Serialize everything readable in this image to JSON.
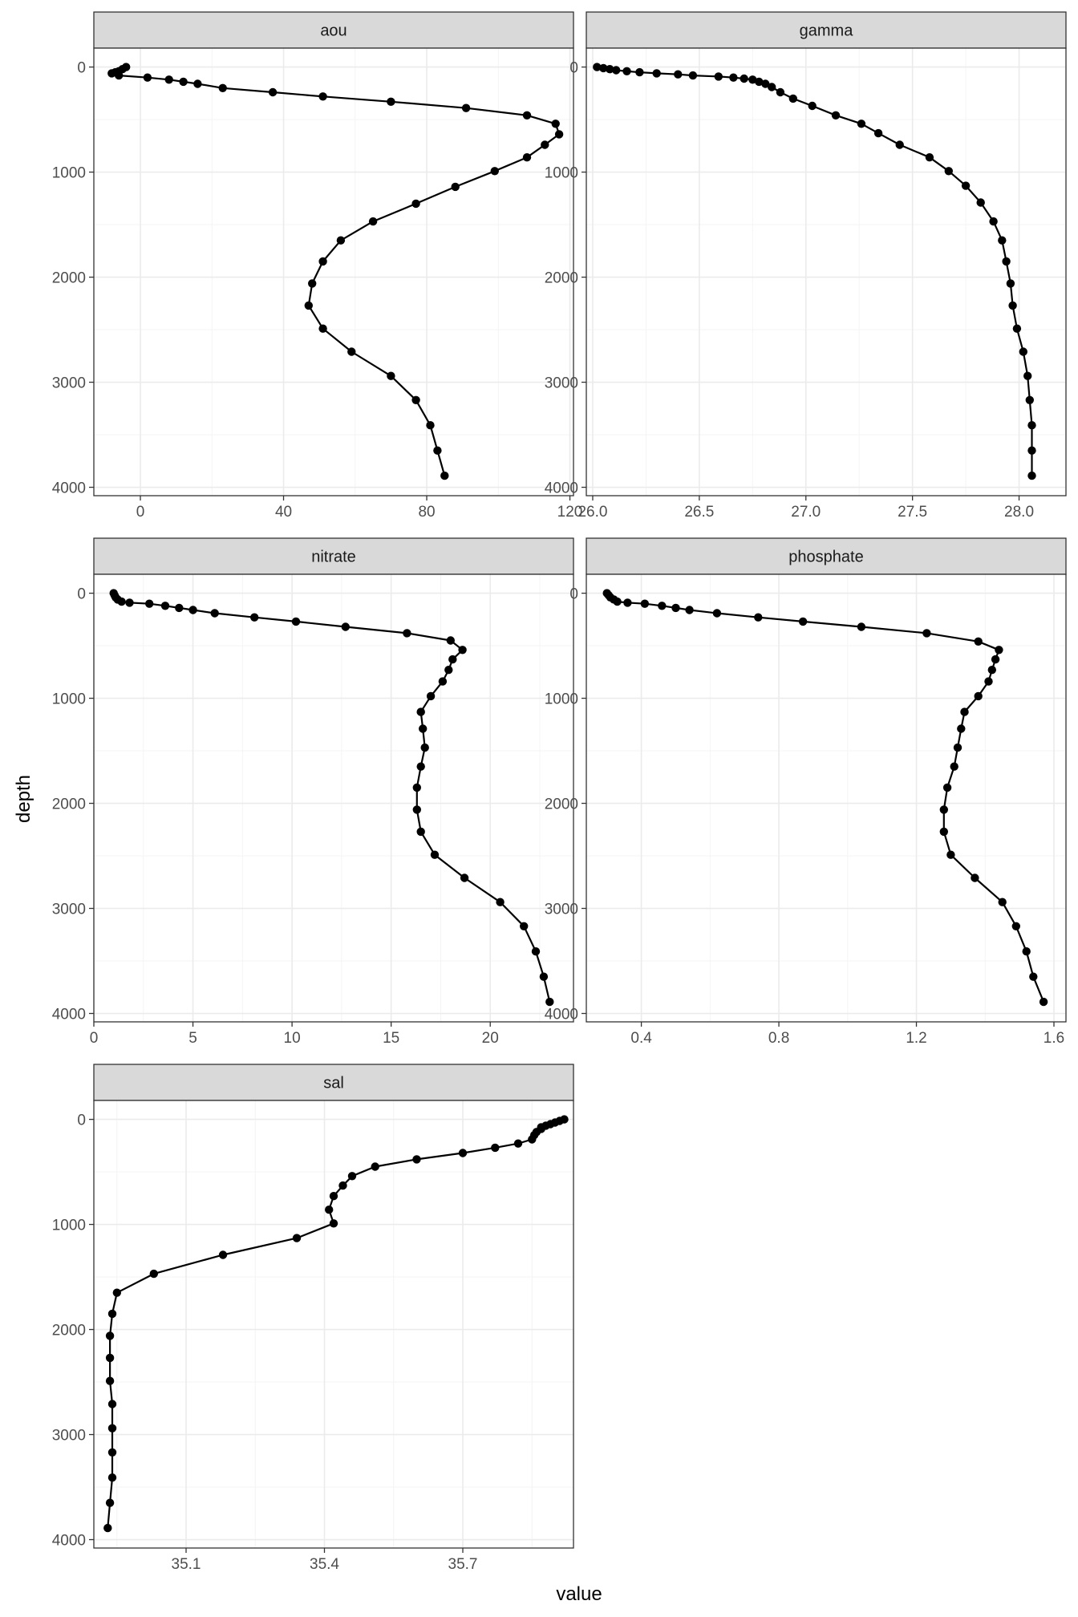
{
  "chart_data": {
    "type": "line",
    "xlabel": "value",
    "ylabel": "depth",
    "grid": true,
    "facets": [
      {
        "name": "aou",
        "x_ticks": [
          "0",
          "40",
          "80",
          "120"
        ],
        "x_tick_values": [
          0,
          40,
          80,
          120
        ],
        "xlim": [
          -13,
          121
        ],
        "minor_x": [
          20,
          60,
          100
        ],
        "y_ticks": [
          "0",
          "1000",
          "2000",
          "3000",
          "4000"
        ],
        "y_tick_values": [
          0,
          1000,
          2000,
          3000,
          4000
        ],
        "ylim": [
          4080,
          -180
        ],
        "points": [
          {
            "x": -4,
            "y": 0
          },
          {
            "x": -5,
            "y": 20
          },
          {
            "x": -6,
            "y": 40
          },
          {
            "x": -7,
            "y": 50
          },
          {
            "x": -8,
            "y": 60
          },
          {
            "x": -6,
            "y": 80
          },
          {
            "x": 2,
            "y": 100
          },
          {
            "x": 8,
            "y": 120
          },
          {
            "x": 12,
            "y": 140
          },
          {
            "x": 16,
            "y": 160
          },
          {
            "x": 23,
            "y": 200
          },
          {
            "x": 37,
            "y": 240
          },
          {
            "x": 51,
            "y": 280
          },
          {
            "x": 70,
            "y": 330
          },
          {
            "x": 91,
            "y": 390
          },
          {
            "x": 108,
            "y": 460
          },
          {
            "x": 116,
            "y": 540
          },
          {
            "x": 117,
            "y": 640
          },
          {
            "x": 113,
            "y": 740
          },
          {
            "x": 108,
            "y": 860
          },
          {
            "x": 99,
            "y": 990
          },
          {
            "x": 88,
            "y": 1140
          },
          {
            "x": 77,
            "y": 1300
          },
          {
            "x": 65,
            "y": 1470
          },
          {
            "x": 56,
            "y": 1650
          },
          {
            "x": 51,
            "y": 1850
          },
          {
            "x": 48,
            "y": 2060
          },
          {
            "x": 47,
            "y": 2270
          },
          {
            "x": 51,
            "y": 2490
          },
          {
            "x": 59,
            "y": 2710
          },
          {
            "x": 70,
            "y": 2940
          },
          {
            "x": 77,
            "y": 3170
          },
          {
            "x": 81,
            "y": 3410
          },
          {
            "x": 83,
            "y": 3650
          },
          {
            "x": 85,
            "y": 3890
          }
        ]
      },
      {
        "name": "gamma",
        "x_ticks": [
          "26.0",
          "26.5",
          "27.0",
          "27.5",
          "28.0"
        ],
        "x_tick_values": [
          26.0,
          26.5,
          27.0,
          27.5,
          28.0
        ],
        "xlim": [
          25.97,
          28.22
        ],
        "minor_x": [
          26.25,
          26.75,
          27.25,
          27.75
        ],
        "y_ticks": [
          "0",
          "1000",
          "2000",
          "3000",
          "4000"
        ],
        "y_tick_values": [
          0,
          1000,
          2000,
          3000,
          4000
        ],
        "ylim": [
          4080,
          -180
        ],
        "points": [
          {
            "x": 26.02,
            "y": 0
          },
          {
            "x": 26.05,
            "y": 10
          },
          {
            "x": 26.08,
            "y": 20
          },
          {
            "x": 26.11,
            "y": 30
          },
          {
            "x": 26.16,
            "y": 40
          },
          {
            "x": 26.22,
            "y": 50
          },
          {
            "x": 26.3,
            "y": 60
          },
          {
            "x": 26.4,
            "y": 70
          },
          {
            "x": 26.47,
            "y": 80
          },
          {
            "x": 26.59,
            "y": 90
          },
          {
            "x": 26.66,
            "y": 100
          },
          {
            "x": 26.71,
            "y": 110
          },
          {
            "x": 26.75,
            "y": 120
          },
          {
            "x": 26.78,
            "y": 140
          },
          {
            "x": 26.81,
            "y": 160
          },
          {
            "x": 26.84,
            "y": 190
          },
          {
            "x": 26.88,
            "y": 240
          },
          {
            "x": 26.94,
            "y": 300
          },
          {
            "x": 27.03,
            "y": 370
          },
          {
            "x": 27.14,
            "y": 460
          },
          {
            "x": 27.26,
            "y": 540
          },
          {
            "x": 27.34,
            "y": 630
          },
          {
            "x": 27.44,
            "y": 740
          },
          {
            "x": 27.58,
            "y": 860
          },
          {
            "x": 27.67,
            "y": 990
          },
          {
            "x": 27.75,
            "y": 1130
          },
          {
            "x": 27.82,
            "y": 1290
          },
          {
            "x": 27.88,
            "y": 1470
          },
          {
            "x": 27.92,
            "y": 1650
          },
          {
            "x": 27.94,
            "y": 1850
          },
          {
            "x": 27.96,
            "y": 2060
          },
          {
            "x": 27.97,
            "y": 2270
          },
          {
            "x": 27.99,
            "y": 2490
          },
          {
            "x": 28.02,
            "y": 2710
          },
          {
            "x": 28.04,
            "y": 2940
          },
          {
            "x": 28.05,
            "y": 3170
          },
          {
            "x": 28.06,
            "y": 3410
          },
          {
            "x": 28.06,
            "y": 3650
          },
          {
            "x": 28.06,
            "y": 3890
          }
        ]
      },
      {
        "name": "nitrate",
        "x_ticks": [
          "0",
          "5",
          "10",
          "15",
          "20"
        ],
        "x_tick_values": [
          0,
          5,
          10,
          15,
          20
        ],
        "xlim": [
          0,
          24.2
        ],
        "minor_x": [
          2.5,
          7.5,
          12.5,
          17.5,
          22.5
        ],
        "y_ticks": [
          "0",
          "1000",
          "2000",
          "3000",
          "4000"
        ],
        "y_tick_values": [
          0,
          1000,
          2000,
          3000,
          4000
        ],
        "ylim": [
          4080,
          -180
        ],
        "points": [
          {
            "x": 1.0,
            "y": 0
          },
          {
            "x": 1.05,
            "y": 20
          },
          {
            "x": 1.1,
            "y": 40
          },
          {
            "x": 1.2,
            "y": 60
          },
          {
            "x": 1.4,
            "y": 80
          },
          {
            "x": 1.8,
            "y": 90
          },
          {
            "x": 2.8,
            "y": 100
          },
          {
            "x": 3.6,
            "y": 120
          },
          {
            "x": 4.3,
            "y": 140
          },
          {
            "x": 5.0,
            "y": 160
          },
          {
            "x": 6.1,
            "y": 190
          },
          {
            "x": 8.1,
            "y": 230
          },
          {
            "x": 10.2,
            "y": 270
          },
          {
            "x": 12.7,
            "y": 320
          },
          {
            "x": 15.8,
            "y": 380
          },
          {
            "x": 18.0,
            "y": 450
          },
          {
            "x": 18.6,
            "y": 540
          },
          {
            "x": 18.1,
            "y": 630
          },
          {
            "x": 17.9,
            "y": 730
          },
          {
            "x": 17.6,
            "y": 840
          },
          {
            "x": 17.0,
            "y": 980
          },
          {
            "x": 16.5,
            "y": 1130
          },
          {
            "x": 16.6,
            "y": 1290
          },
          {
            "x": 16.7,
            "y": 1470
          },
          {
            "x": 16.5,
            "y": 1650
          },
          {
            "x": 16.3,
            "y": 1850
          },
          {
            "x": 16.3,
            "y": 2060
          },
          {
            "x": 16.5,
            "y": 2270
          },
          {
            "x": 17.2,
            "y": 2490
          },
          {
            "x": 18.7,
            "y": 2710
          },
          {
            "x": 20.5,
            "y": 2940
          },
          {
            "x": 21.7,
            "y": 3170
          },
          {
            "x": 22.3,
            "y": 3410
          },
          {
            "x": 22.7,
            "y": 3650
          },
          {
            "x": 23.0,
            "y": 3890
          }
        ]
      },
      {
        "name": "phosphate",
        "x_ticks": [
          "0.4",
          "0.8",
          "1.2",
          "1.6"
        ],
        "x_tick_values": [
          0.4,
          0.8,
          1.2,
          1.6
        ],
        "xlim": [
          0.24,
          1.635
        ],
        "minor_x": [
          0.6,
          1.0,
          1.4
        ],
        "y_ticks": [
          "0",
          "1000",
          "2000",
          "3000",
          "4000"
        ],
        "y_tick_values": [
          0,
          1000,
          2000,
          3000,
          4000
        ],
        "ylim": [
          4080,
          -180
        ],
        "points": [
          {
            "x": 0.3,
            "y": 0
          },
          {
            "x": 0.305,
            "y": 20
          },
          {
            "x": 0.31,
            "y": 40
          },
          {
            "x": 0.32,
            "y": 60
          },
          {
            "x": 0.33,
            "y": 80
          },
          {
            "x": 0.36,
            "y": 90
          },
          {
            "x": 0.41,
            "y": 100
          },
          {
            "x": 0.46,
            "y": 120
          },
          {
            "x": 0.5,
            "y": 140
          },
          {
            "x": 0.54,
            "y": 160
          },
          {
            "x": 0.62,
            "y": 190
          },
          {
            "x": 0.74,
            "y": 230
          },
          {
            "x": 0.87,
            "y": 270
          },
          {
            "x": 1.04,
            "y": 320
          },
          {
            "x": 1.23,
            "y": 380
          },
          {
            "x": 1.38,
            "y": 460
          },
          {
            "x": 1.44,
            "y": 540
          },
          {
            "x": 1.43,
            "y": 630
          },
          {
            "x": 1.42,
            "y": 730
          },
          {
            "x": 1.41,
            "y": 840
          },
          {
            "x": 1.38,
            "y": 980
          },
          {
            "x": 1.34,
            "y": 1130
          },
          {
            "x": 1.33,
            "y": 1290
          },
          {
            "x": 1.32,
            "y": 1470
          },
          {
            "x": 1.31,
            "y": 1650
          },
          {
            "x": 1.29,
            "y": 1850
          },
          {
            "x": 1.28,
            "y": 2060
          },
          {
            "x": 1.28,
            "y": 2270
          },
          {
            "x": 1.3,
            "y": 2490
          },
          {
            "x": 1.37,
            "y": 2710
          },
          {
            "x": 1.45,
            "y": 2940
          },
          {
            "x": 1.49,
            "y": 3170
          },
          {
            "x": 1.52,
            "y": 3410
          },
          {
            "x": 1.54,
            "y": 3650
          },
          {
            "x": 1.57,
            "y": 3890
          }
        ]
      },
      {
        "name": "sal",
        "x_ticks": [
          "35.1",
          "35.4",
          "35.7"
        ],
        "x_tick_values": [
          35.1,
          35.4,
          35.7
        ],
        "xlim": [
          34.9,
          35.94
        ],
        "minor_x": [
          34.95,
          35.25,
          35.55,
          35.85
        ],
        "y_ticks": [
          "0",
          "1000",
          "2000",
          "3000",
          "4000"
        ],
        "y_tick_values": [
          0,
          1000,
          2000,
          3000,
          4000
        ],
        "ylim": [
          4080,
          -180
        ],
        "points": [
          {
            "x": 35.92,
            "y": 0
          },
          {
            "x": 35.91,
            "y": 15
          },
          {
            "x": 35.9,
            "y": 30
          },
          {
            "x": 35.89,
            "y": 45
          },
          {
            "x": 35.88,
            "y": 60
          },
          {
            "x": 35.87,
            "y": 75
          },
          {
            "x": 35.87,
            "y": 90
          },
          {
            "x": 35.86,
            "y": 120
          },
          {
            "x": 35.855,
            "y": 150
          },
          {
            "x": 35.85,
            "y": 190
          },
          {
            "x": 35.82,
            "y": 230
          },
          {
            "x": 35.77,
            "y": 270
          },
          {
            "x": 35.7,
            "y": 320
          },
          {
            "x": 35.6,
            "y": 380
          },
          {
            "x": 35.51,
            "y": 450
          },
          {
            "x": 35.46,
            "y": 540
          },
          {
            "x": 35.44,
            "y": 630
          },
          {
            "x": 35.42,
            "y": 730
          },
          {
            "x": 35.41,
            "y": 860
          },
          {
            "x": 35.42,
            "y": 990
          },
          {
            "x": 35.34,
            "y": 1130
          },
          {
            "x": 35.18,
            "y": 1290
          },
          {
            "x": 35.03,
            "y": 1470
          },
          {
            "x": 34.95,
            "y": 1650
          },
          {
            "x": 34.94,
            "y": 1850
          },
          {
            "x": 34.935,
            "y": 2060
          },
          {
            "x": 34.935,
            "y": 2270
          },
          {
            "x": 34.935,
            "y": 2490
          },
          {
            "x": 34.94,
            "y": 2710
          },
          {
            "x": 34.94,
            "y": 2940
          },
          {
            "x": 34.94,
            "y": 3170
          },
          {
            "x": 34.94,
            "y": 3410
          },
          {
            "x": 34.935,
            "y": 3650
          },
          {
            "x": 34.93,
            "y": 3890
          }
        ]
      }
    ]
  }
}
